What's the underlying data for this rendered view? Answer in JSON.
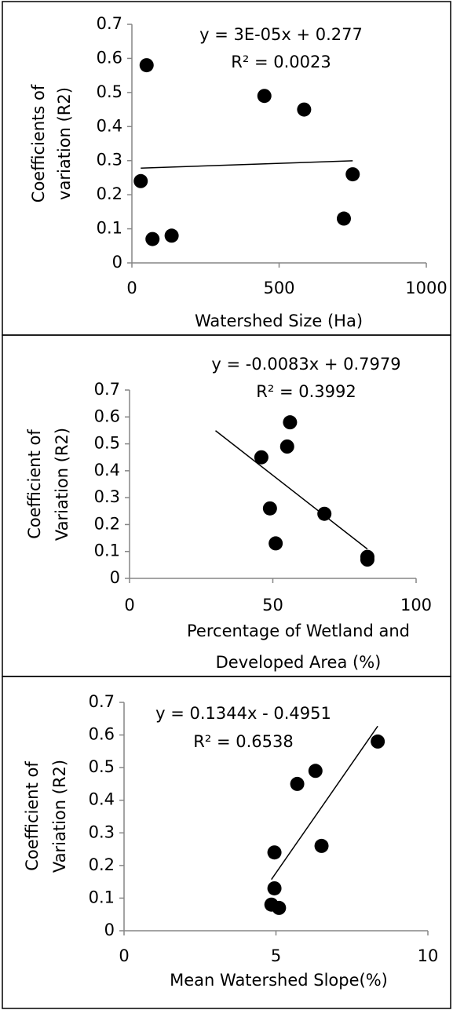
{
  "chart_data": [
    {
      "type": "scatter",
      "annotations": [
        "y = 3E-05x + 0.277",
        "R² = 0.0023"
      ],
      "x_label": [
        "Watershed Size (Ha)"
      ],
      "y_label": [
        "Coefficients of",
        "variation (R2)"
      ],
      "x": [
        50,
        450,
        585,
        750,
        720,
        30,
        70,
        135
      ],
      "values": [
        0.58,
        0.49,
        0.45,
        0.26,
        0.13,
        0.24,
        0.07,
        0.08
      ],
      "color": "#000000",
      "trendline": {
        "x": [
          30,
          750
        ],
        "values": [
          0.278,
          0.2995
        ]
      },
      "xlim": [
        0,
        1000
      ],
      "xticks": [
        0,
        500,
        1000
      ],
      "ylim": [
        0,
        0.7
      ],
      "yticks": [
        0,
        0.1,
        0.2,
        0.3,
        0.4,
        0.5,
        0.6,
        0.7
      ]
    },
    {
      "type": "scatter",
      "annotations": [
        "y = -0.0083x + 0.7979",
        "R² = 0.3992"
      ],
      "x_label": [
        "Percentage of Wetland and",
        "Developed Area (%)"
      ],
      "y_label": [
        "Coefficient of",
        "Variation (R2)"
      ],
      "x": [
        46,
        55,
        56,
        49,
        51,
        68,
        83,
        83
      ],
      "values": [
        0.45,
        0.49,
        0.58,
        0.26,
        0.13,
        0.24,
        0.08,
        0.07
      ],
      "color": "#000000",
      "trendline": {
        "x": [
          30,
          83
        ],
        "values": [
          0.549,
          0.109
        ]
      },
      "xlim": [
        0,
        100
      ],
      "xticks": [
        0,
        50,
        100
      ],
      "ylim": [
        0,
        0.7
      ],
      "yticks": [
        0,
        0.1,
        0.2,
        0.3,
        0.4,
        0.5,
        0.6,
        0.7
      ]
    },
    {
      "type": "scatter",
      "annotations": [
        "y = 0.1344x - 0.4951",
        "R² = 0.6538"
      ],
      "x_label": [
        "Mean Watershed Slope(%)"
      ],
      "y_label": [
        "Coefficient  of",
        "Variation (R2)"
      ],
      "x": [
        8.35,
        5.7,
        6.3,
        6.5,
        4.95,
        4.95,
        4.85,
        5.1
      ],
      "values": [
        0.58,
        0.45,
        0.49,
        0.26,
        0.24,
        0.13,
        0.08,
        0.07
      ],
      "color": "#000000",
      "trendline": {
        "x": [
          4.85,
          8.35
        ],
        "values": [
          0.157,
          0.627
        ]
      },
      "xlim": [
        0,
        10
      ],
      "xticks": [
        0,
        5,
        10
      ],
      "ylim": [
        0,
        0.7
      ],
      "yticks": [
        0,
        0.1,
        0.2,
        0.3,
        0.4,
        0.5,
        0.6,
        0.7
      ]
    }
  ]
}
